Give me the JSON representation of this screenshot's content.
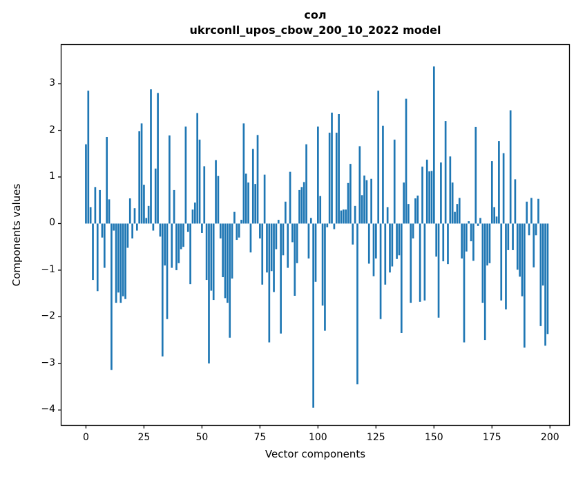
{
  "figure": {
    "title_line1": "сол",
    "title_line2": "ukrconll_upos_cbow_200_10_2022 model",
    "xlabel": "Vector components",
    "ylabel": "Components values"
  },
  "chart_data": {
    "type": "bar",
    "title": "сол",
    "subtitle": "ukrconll_upos_cbow_200_10_2022 model",
    "xlabel": "Vector components",
    "ylabel": "Components values",
    "bar_color": "#1f77b4",
    "spine_color": "#000000",
    "grid": false,
    "legend": null,
    "x_start": 0,
    "x_ticks": [
      0,
      25,
      50,
      75,
      100,
      125,
      150,
      175,
      200
    ],
    "y_ticks": [
      3,
      2,
      1,
      0,
      -1,
      -2,
      -3,
      -4
    ],
    "xlim": [
      -10.7,
      208.4
    ],
    "ylim": [
      -4.33,
      3.84
    ],
    "bar_width": 0.8,
    "values": [
      1.7,
      2.85,
      0.35,
      -1.21,
      0.78,
      -1.45,
      0.72,
      -0.3,
      -0.95,
      1.86,
      0.52,
      -3.14,
      -0.15,
      -1.7,
      -1.48,
      -1.7,
      -1.56,
      -1.62,
      -0.52,
      0.54,
      -0.32,
      0.33,
      -0.15,
      1.98,
      2.15,
      0.83,
      0.12,
      0.38,
      2.88,
      -0.15,
      1.18,
      2.8,
      -0.28,
      -2.85,
      -0.9,
      -2.05,
      1.89,
      -0.95,
      0.72,
      -1.0,
      -0.85,
      -0.55,
      -0.5,
      2.08,
      -0.18,
      -1.3,
      0.3,
      0.45,
      2.37,
      1.8,
      -0.2,
      1.23,
      -1.21,
      -3.0,
      -1.44,
      -1.64,
      1.36,
      1.02,
      -0.32,
      -1.15,
      -1.6,
      -1.7,
      -2.45,
      -1.18,
      0.25,
      -0.35,
      -0.3,
      0.08,
      2.15,
      1.07,
      0.88,
      -0.62,
      1.6,
      0.85,
      1.9,
      -0.32,
      -1.31,
      1.05,
      -1.05,
      -2.55,
      -1.02,
      -1.47,
      -0.55,
      0.08,
      -2.36,
      -0.68,
      0.47,
      -0.95,
      1.11,
      -0.4,
      -1.55,
      -0.85,
      0.72,
      0.78,
      0.89,
      1.7,
      -0.75,
      0.12,
      -3.95,
      -1.25,
      2.08,
      0.59,
      -1.76,
      -2.3,
      -0.08,
      1.95,
      2.38,
      -0.12,
      1.95,
      2.35,
      0.28,
      0.3,
      0.3,
      0.87,
      1.28,
      -0.45,
      0.38,
      -3.45,
      1.66,
      0.61,
      1.03,
      0.93,
      -0.86,
      0.96,
      -1.13,
      -0.75,
      2.85,
      -2.05,
      2.1,
      -1.31,
      0.35,
      -1.05,
      -0.92,
      1.8,
      -0.76,
      -0.68,
      -2.35,
      0.88,
      2.68,
      0.42,
      -1.7,
      -0.32,
      0.54,
      0.6,
      -1.68,
      1.22,
      -1.65,
      1.37,
      1.12,
      1.13,
      3.37,
      -0.71,
      -2.02,
      1.31,
      -0.81,
      2.2,
      -0.87,
      1.44,
      0.88,
      0.25,
      0.42,
      0.55,
      -0.75,
      -2.55,
      -0.6,
      0.05,
      -0.38,
      -0.8,
      2.07,
      -0.05,
      0.12,
      -1.7,
      -2.5,
      -0.9,
      -0.85,
      1.34,
      0.35,
      0.15,
      1.77,
      -1.65,
      1.51,
      -1.84,
      -0.57,
      2.43,
      -0.57,
      0.95,
      -0.99,
      -1.14,
      -1.56,
      -2.66,
      0.47,
      -0.25,
      0.55,
      -0.94,
      -0.25,
      0.53,
      -2.2,
      -1.33,
      -2.62,
      -2.37
    ]
  }
}
